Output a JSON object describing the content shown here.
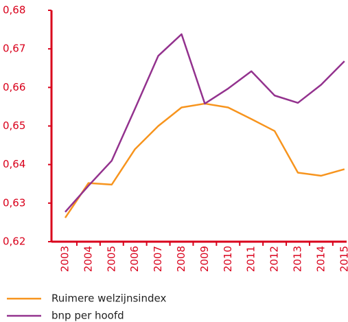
{
  "chart_data": {
    "type": "line",
    "categories": [
      "2003",
      "2004",
      "2005",
      "2006",
      "2007",
      "2008",
      "2009",
      "2010",
      "2011",
      "2012",
      "2013",
      "2014",
      "2015"
    ],
    "series": [
      {
        "name": "Ruimere welzijnsindex",
        "color": "#f7941d",
        "values": [
          0.6262,
          0.6352,
          0.6348,
          0.644,
          0.65,
          0.6548,
          0.6558,
          0.6548,
          0.6518,
          0.6487,
          0.6379,
          0.6371,
          0.6388
        ]
      },
      {
        "name": "bnp per hoofd",
        "color": "#93328e",
        "values": [
          0.6277,
          0.6345,
          0.641,
          0.6545,
          0.6682,
          0.6738,
          0.6558,
          0.6597,
          0.6642,
          0.6579,
          0.656,
          0.6607,
          0.6668
        ]
      }
    ],
    "ylim": [
      0.62,
      0.68
    ],
    "yticks": [
      {
        "value": 0.62,
        "label": "0,62"
      },
      {
        "value": 0.63,
        "label": "0,63"
      },
      {
        "value": 0.64,
        "label": "0,64"
      },
      {
        "value": 0.65,
        "label": "0,65"
      },
      {
        "value": 0.66,
        "label": "0,66"
      },
      {
        "value": 0.67,
        "label": "0,67"
      },
      {
        "value": 0.68,
        "label": "0,68"
      }
    ],
    "axis_color": "#d9001b",
    "grid": false
  }
}
